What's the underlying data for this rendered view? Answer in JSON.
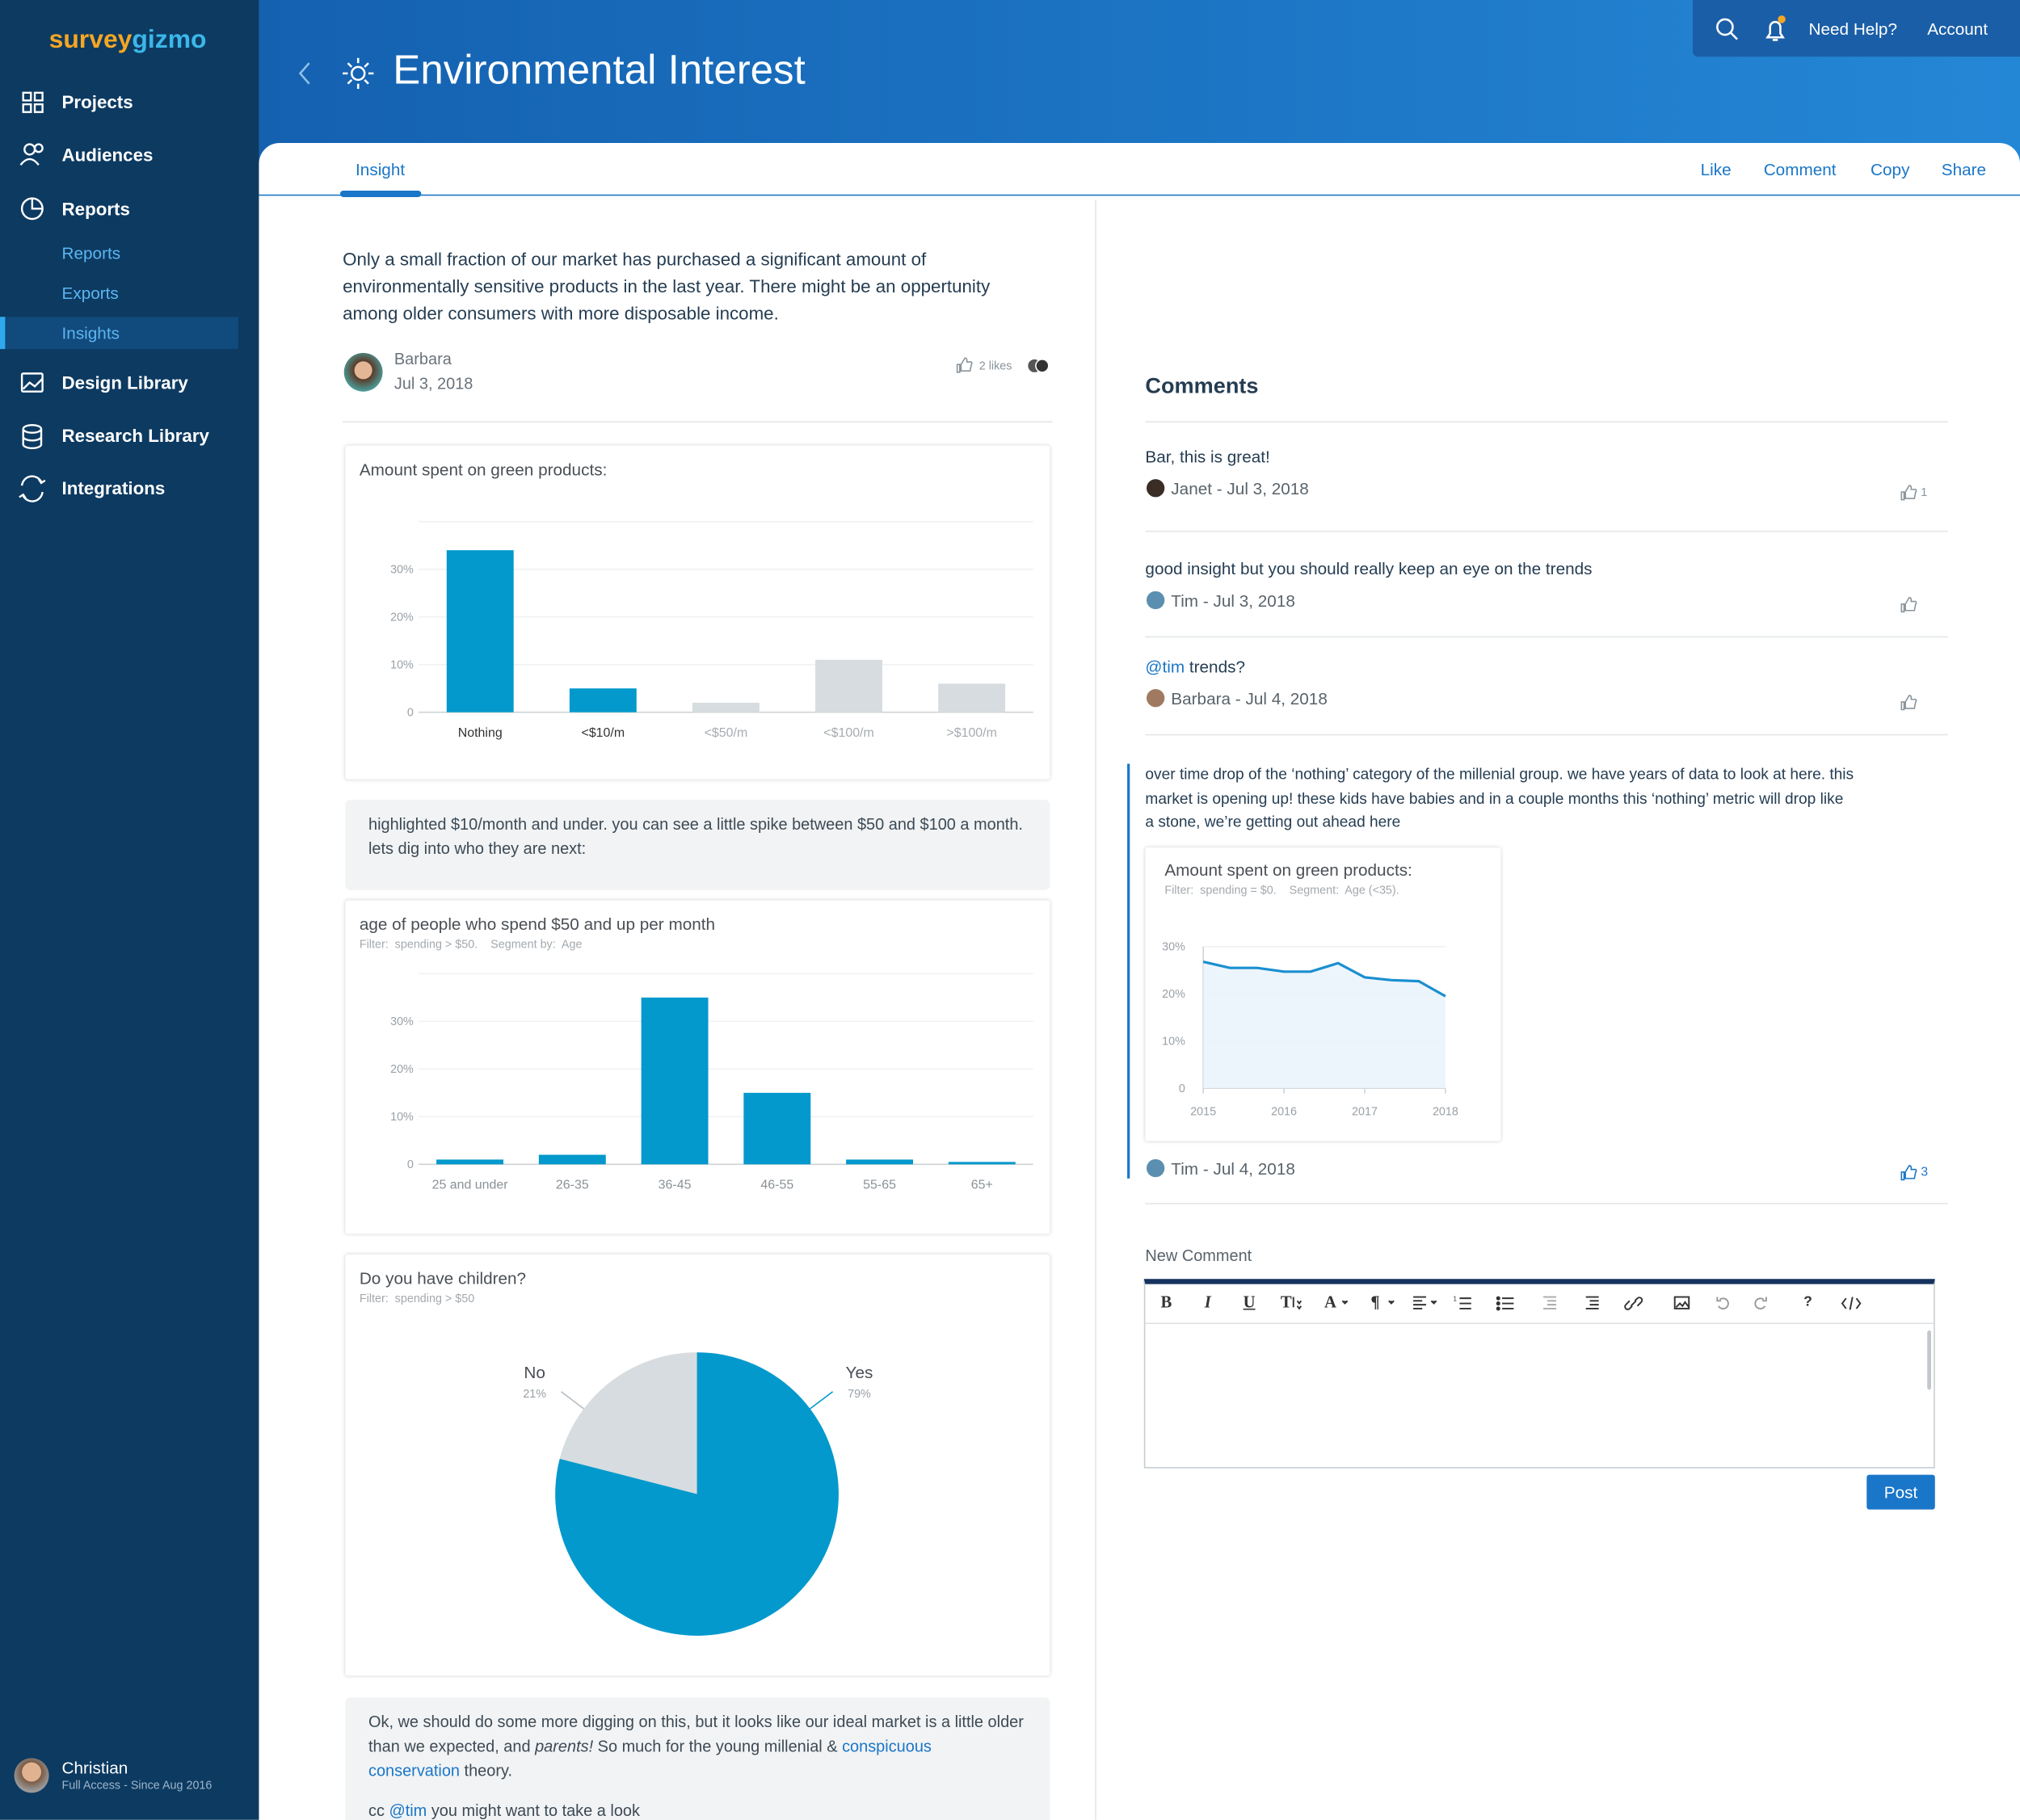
{
  "sidebar": {
    "logo": [
      "survey",
      "gizmo"
    ],
    "nav": [
      {
        "label": "Projects"
      },
      {
        "label": "Audiences"
      },
      {
        "label": "Reports",
        "children": [
          "Reports",
          "Exports",
          "Insights"
        ]
      },
      {
        "label": "Design Library"
      },
      {
        "label": "Research Library"
      },
      {
        "label": "Integrations"
      }
    ],
    "user": {
      "name": "Christian",
      "plan": "Full Access - Since Aug 2016"
    }
  },
  "topbar": {
    "links": [
      "Need Help?",
      "Account"
    ]
  },
  "header": {
    "title": "Environmental Interest"
  },
  "tabs": {
    "items": [
      "Insight"
    ],
    "actions": [
      "Like",
      "Comment",
      "Copy",
      "Share"
    ]
  },
  "insight": {
    "text": "Only a small fraction of our market has purchased a significant amount of environmentally sensitive products in the last year. There might be an oppertunity among older consumers with more disposable income.",
    "author": "Barbara",
    "date": "Jul 3, 2018",
    "likes": "2 likes",
    "charts": [
      {
        "type": "bar",
        "title": "Amount spent on green products:",
        "categories": [
          "Nothing",
          "<$10/m",
          "<$50/m",
          "<$100/m",
          ">$100/m"
        ],
        "values": [
          34,
          5,
          2,
          11,
          6
        ],
        "colors": [
          "#0399cc",
          "#0399cc",
          "#d6dcdf",
          "#d6dcdf",
          "#d6dcdf"
        ],
        "ylim": [
          0,
          40
        ],
        "yticks": [
          0,
          {
            "value": 10,
            "label": "10%"
          },
          {
            "value": 20,
            "label": "20%"
          },
          {
            "value": 30,
            "label": "30%"
          }
        ],
        "grid": true
      },
      {
        "type": "bar",
        "title": "age of people who spend $50 and up per month",
        "filter": "Filter:  spending > $50.    Segment by:  Age",
        "categories": [
          "25 and under",
          "26-35",
          "36-45",
          "46-55",
          "55-65",
          "65+"
        ],
        "values": [
          1,
          2,
          35,
          15,
          1,
          0.5
        ],
        "color": "#0399cc",
        "ylim": [
          0,
          40
        ],
        "yticks": [
          0,
          {
            "value": 10,
            "label": "10%"
          },
          {
            "value": 20,
            "label": "20%"
          },
          {
            "value": 30,
            "label": "30%"
          }
        ],
        "grid": true
      },
      {
        "type": "pie",
        "title": "Do you have children?",
        "filter": "Filter:  spending > $50",
        "categories": [
          "No",
          "Yes"
        ],
        "values": [
          21,
          79
        ],
        "value_labels": [
          "21%",
          "79%"
        ],
        "colors": [
          "#d6dcdf",
          "#0399cc"
        ]
      }
    ],
    "notes": [
      [
        [
          {
            "text": "highlighted $10/month and under.  you can see a little spike between $50 and $100 a month.  lets dig into who they are next:"
          }
        ]
      ],
      [
        [
          {
            "text": "Ok, we should do some more digging on this, but it looks like our ideal market is a little older than we expected, and "
          },
          {
            "text": "parents!",
            "style": "italic"
          },
          {
            "text": "  So much for the young millenial & "
          },
          {
            "text": "conspicuous conservation",
            "style": "link"
          },
          {
            "text": " theory."
          }
        ],
        [
          {
            "text": "cc "
          },
          {
            "text": "@tim",
            "style": "link"
          },
          {
            "text": " you might want to take a look"
          }
        ]
      ]
    ]
  },
  "comments": {
    "title": "Comments",
    "items": [
      {
        "text": [
          {
            "text": "Bar, this is great!"
          }
        ],
        "author": "Janet - Jul 3, 2018",
        "likes": 1
      },
      {
        "text": [
          {
            "text": "good insight but you should really keep an eye on the trends"
          }
        ],
        "author": "Tim - Jul 3, 2018"
      },
      {
        "text": [
          {
            "text": "@tim",
            "style": "link"
          },
          {
            "text": " trends?"
          }
        ],
        "author": "Barbara - Jul 4, 2018"
      },
      {
        "text": [
          {
            "text": "over time drop of the ‘nothing’ category of the millenial group.  we have years of data to look at here.  this market is opening up!  these kids have babies and in a couple months this ‘nothing’ metric will drop like a stone, we’re getting out ahead here"
          }
        ],
        "author": "Tim - Jul 4, 2018",
        "likes": 3,
        "chart": {
          "type": "line",
          "title": "Amount spent on green products:",
          "filter": "Filter:  spending = $0.    Segment:  Age (<35).",
          "x": [
            2015,
            2015.33,
            2015.67,
            2016,
            2016.33,
            2016.67,
            2017,
            2017.33,
            2017.67,
            2018
          ],
          "values": [
            26.8,
            25.5,
            25.5,
            24.7,
            24.7,
            26.5,
            23.5,
            22.9,
            22.7,
            19.5
          ],
          "color": "#1a8fd0",
          "xlim": [
            2015,
            2018
          ],
          "xticks": [
            2015,
            2016,
            2017,
            2018
          ],
          "ylim": [
            0,
            30
          ],
          "yticks": [
            0,
            {
              "value": 10,
              "label": "10%"
            },
            {
              "value": 20,
              "label": "20%"
            },
            {
              "value": 30,
              "label": "30%"
            }
          ]
        }
      }
    ]
  },
  "editor": {
    "label": "New Comment",
    "toolbar": [
      "B",
      "I",
      "U",
      "T",
      "A",
      "¶",
      "?"
    ],
    "submit": "Post"
  }
}
